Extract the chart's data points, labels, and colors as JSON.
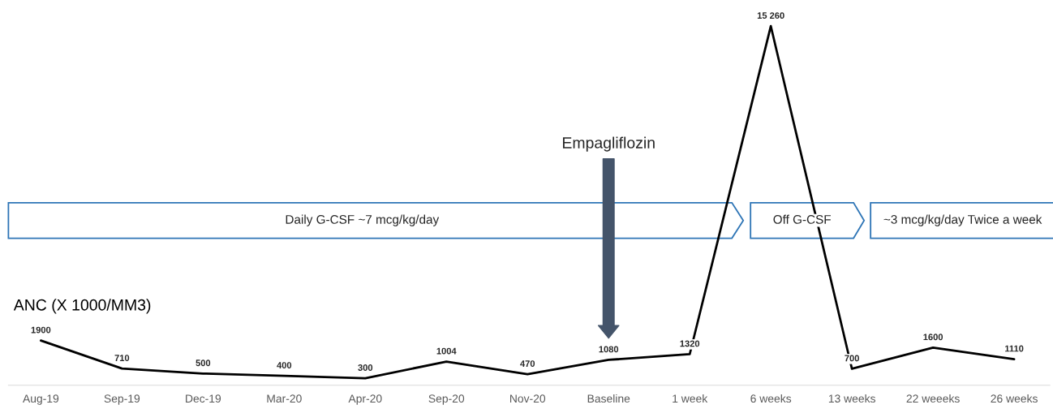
{
  "chart_data": {
    "type": "line",
    "categories": [
      "Aug-19",
      "Sep-19",
      "Dec-19",
      "Mar-20",
      "Apr-20",
      "Sep-20",
      "Nov-20",
      "Baseline",
      "1 week",
      "6 weeks",
      "13 weeks",
      "22 weeeks",
      "26 weeks"
    ],
    "values": [
      1900,
      710,
      500,
      400,
      300,
      1004,
      470,
      1080,
      1320,
      15260,
      700,
      1600,
      1110
    ],
    "value_labels": [
      "1900",
      "710",
      "500",
      "400",
      "300",
      "1004",
      "470",
      "1080",
      "1320",
      "15 260",
      "700",
      "1600",
      "1110"
    ],
    "color": "#000000",
    "tick_labels": "x",
    "grid": false,
    "legend": false,
    "ylabel": "ANC (X 1000/MM3)",
    "annotations": [
      "Empagliflozin",
      "Daily G-CSF ~7 mcg/kg/day",
      "Off G-CSF",
      "~3 mcg/kg/day Twice a week"
    ]
  }
}
